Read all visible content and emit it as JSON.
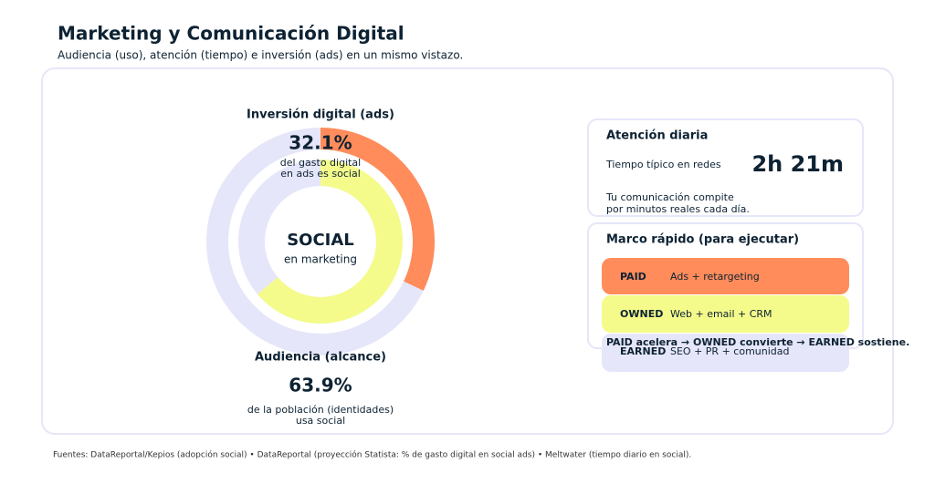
{
  "header": {
    "title": "Marketing y Comunicación Digital",
    "subtitle": "Audiencia (uso), atención (tiempo) e inversión (ads) en un mismo vistazo."
  },
  "chart_data": {
    "type": "donut",
    "center_label": "SOCIAL",
    "center_sublabel": "en marketing",
    "ylim": [
      0,
      100
    ],
    "track_color": "#e6e6fa",
    "series": [
      {
        "name": "Inversión digital (ads)",
        "color": "#ff8c5a",
        "values": [
          32.1
        ],
        "value_labels": [
          "32.1%"
        ],
        "caption": [
          "del gasto digital",
          "en ads es social"
        ]
      },
      {
        "name": "Audiencia (alcance)",
        "color": "#f5fb8a",
        "values": [
          63.9
        ],
        "value_labels": [
          "63.9%"
        ],
        "caption": [
          "de la población (identidades)",
          "usa social"
        ]
      }
    ]
  },
  "attention": {
    "title": "Atención diaria",
    "label": "Tiempo típico en redes",
    "value": "2h 21m",
    "note": [
      "Tu comunicación compite",
      "por minutos reales cada día."
    ]
  },
  "framework": {
    "title": "Marco rápido (para ejecutar)",
    "items": [
      {
        "tag": "PAID",
        "text": "Ads + retargeting"
      },
      {
        "tag": "OWNED",
        "text": "Web + email + CRM"
      },
      {
        "tag": "EARNED",
        "text": "SEO + PR + comunidad"
      }
    ],
    "summary": "PAID acelera → OWNED convierte → EARNED sostiene."
  },
  "footer": "Fuentes: DataReportal/Kepios (adopción social) • DataReportal (proyección Statista: % de gasto digital en social ads) • Meltwater (tiempo diario en social)."
}
